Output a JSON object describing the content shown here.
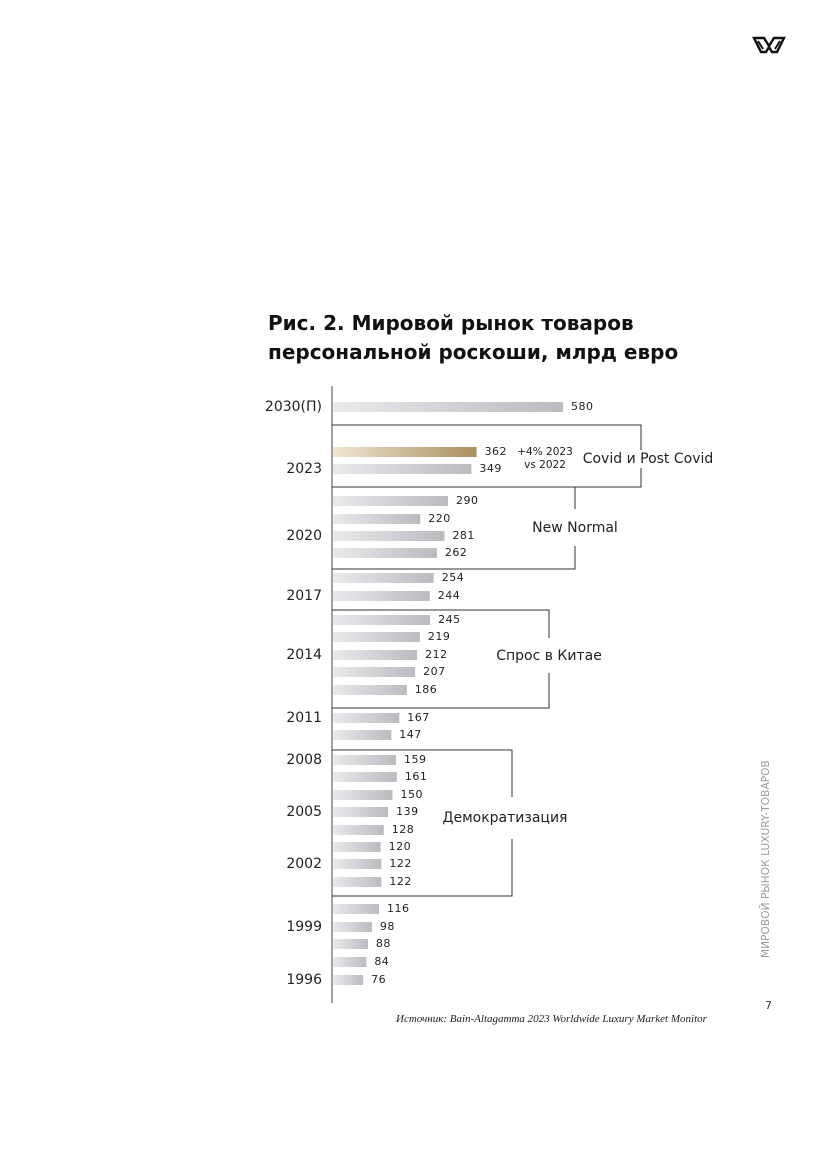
{
  "page": {
    "title_line1": "Рис. 2. Мировой рынок товаров",
    "title_line2": "персональной роскоши, млрд евро",
    "source": "Источник: Bain-Altagamma 2023 Worldwide Luxury Market Monitor",
    "side_label": "МИРОВОЙ РЫНОК LUXURY-ТОВАРОВ",
    "page_number": "7",
    "logo_icon": "brand-logo-icon"
  },
  "colors": {
    "bar_gray": "#c9cbcf",
    "bar_highlight": "#b19a6f",
    "axis": "#444444",
    "bracket": "#333333",
    "text": "#222222"
  },
  "chart_data": {
    "type": "bar",
    "orientation": "horizontal",
    "unit": "млрд евро",
    "values": [
      580,
      362,
      349,
      290,
      220,
      281,
      262,
      254,
      244,
      245,
      219,
      212,
      207,
      186,
      167,
      147,
      159,
      161,
      150,
      139,
      128,
      120,
      122,
      122,
      116,
      98,
      88,
      84,
      76
    ],
    "highlight_index": 1,
    "year_labels": [
      {
        "label": "2030(П)",
        "bar_index": 0
      },
      {
        "label": "2023",
        "bar_index": 2
      },
      {
        "label": "2020",
        "bar_index": 5
      },
      {
        "label": "2017",
        "bar_index": 8
      },
      {
        "label": "2014",
        "bar_index": 11
      },
      {
        "label": "2011",
        "bar_index": 14
      },
      {
        "label": "2008",
        "bar_index": 16
      },
      {
        "label": "2005",
        "bar_index": 19
      },
      {
        "label": "2002",
        "bar_index": 22
      },
      {
        "label": "1999",
        "bar_index": 25
      },
      {
        "label": "1996",
        "bar_index": 28
      }
    ],
    "annotations": [
      {
        "text": "+4% 2023",
        "text2": "vs 2022",
        "near_bar_index": 1
      }
    ],
    "brackets": [
      {
        "label": "Covid и Post Covid",
        "from_index": 1,
        "to_index": 2
      },
      {
        "label": "New Normal",
        "from_index": 3,
        "to_index": 6
      },
      {
        "label": "Спрос в Китае",
        "from_index": 9,
        "to_index": 13
      },
      {
        "label": "Демократизация",
        "from_index": 16,
        "to_index": 23
      }
    ]
  }
}
